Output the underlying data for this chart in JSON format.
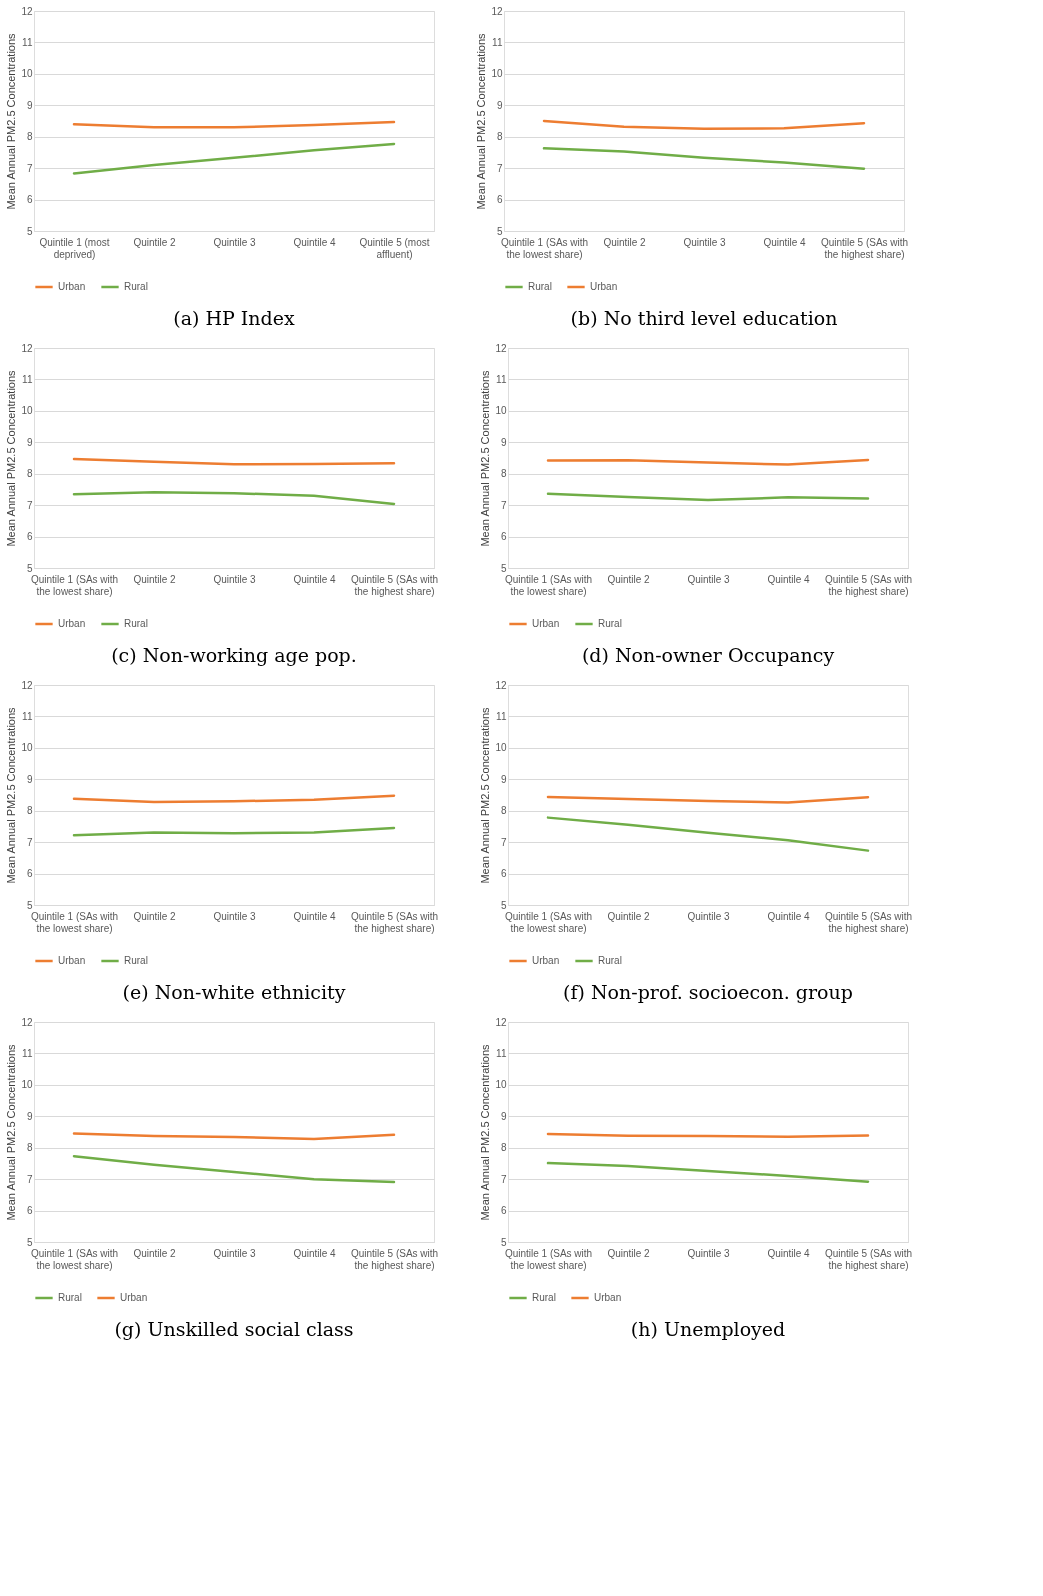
{
  "chart_data": [
    {
      "type": "line",
      "title": "(a) HP Index",
      "ylabel": "Mean Annual PM2.5 Concentrations",
      "categories": [
        "Quintile 1 (most deprived)",
        "Quintile 2",
        "Quintile 3",
        "Quintile 4",
        "Quintile 5 (most affluent)"
      ],
      "ylim": [
        5,
        12
      ],
      "yticks": [
        5,
        6,
        7,
        8,
        9,
        10,
        11,
        12
      ],
      "grid": "y",
      "legend": "bottom",
      "series": [
        {
          "name": "Urban",
          "color": "#ed7d31",
          "values": [
            8.4,
            8.3,
            8.3,
            8.37,
            8.47
          ]
        },
        {
          "name": "Rural",
          "color": "#70ad47",
          "values": [
            6.83,
            7.1,
            7.33,
            7.57,
            7.77
          ]
        }
      ]
    },
    {
      "type": "line",
      "title": "(b) No third level education",
      "ylabel": "Mean Annual PM2.5 Concentrations",
      "categories": [
        "Quintile 1 (SAs with the lowest share)",
        "Quintile 2",
        "Quintile 3",
        "Quintile 4",
        "Quintile 5 (SAs with the highest share)"
      ],
      "ylim": [
        5,
        12
      ],
      "yticks": [
        5,
        6,
        7,
        8,
        9,
        10,
        11,
        12
      ],
      "grid": "y",
      "legend": "bottom",
      "series": [
        {
          "name": "Rural",
          "color": "#70ad47",
          "values": [
            7.63,
            7.53,
            7.33,
            7.18,
            6.98
          ]
        },
        {
          "name": "Urban",
          "color": "#ed7d31",
          "values": [
            8.5,
            8.32,
            8.25,
            8.27,
            8.43
          ]
        }
      ]
    },
    {
      "type": "line",
      "title": "(c) Non-working age pop.",
      "ylabel": "Mean Annual PM2.5 Concentrations",
      "categories": [
        "Quintile 1 (SAs with the lowest share)",
        "Quintile 2",
        "Quintile 3",
        "Quintile 4",
        "Quintile 5 (SAs with the highest share)"
      ],
      "ylim": [
        5,
        12
      ],
      "yticks": [
        5,
        6,
        7,
        8,
        9,
        10,
        11,
        12
      ],
      "grid": "y",
      "legend": "bottom",
      "series": [
        {
          "name": "Urban",
          "color": "#ed7d31",
          "values": [
            8.47,
            8.38,
            8.3,
            8.31,
            8.33
          ]
        },
        {
          "name": "Rural",
          "color": "#70ad47",
          "values": [
            7.35,
            7.41,
            7.38,
            7.3,
            7.04
          ]
        }
      ]
    },
    {
      "type": "line",
      "title": "(d) Non-owner Occupancy",
      "ylabel": "Mean Annual PM2.5 Concentrations",
      "categories": [
        "Quintile 1 (SAs with the lowest share)",
        "Quintile 2",
        "Quintile 3",
        "Quintile 4",
        "Quintile 5 (SAs with the highest share)"
      ],
      "ylim": [
        5,
        12
      ],
      "yticks": [
        5,
        6,
        7,
        8,
        9,
        10,
        11,
        12
      ],
      "grid": "y",
      "legend": "bottom",
      "series": [
        {
          "name": "Urban",
          "color": "#ed7d31",
          "values": [
            8.42,
            8.43,
            8.36,
            8.29,
            8.44
          ]
        },
        {
          "name": "Rural",
          "color": "#70ad47",
          "values": [
            7.36,
            7.26,
            7.16,
            7.25,
            7.21
          ]
        }
      ]
    },
    {
      "type": "line",
      "title": "(e) Non-white ethnicity",
      "ylabel": "Mean Annual PM2.5 Concentrations",
      "categories": [
        "Quintile 1 (SAs with the lowest share)",
        "Quintile 2",
        "Quintile 3",
        "Quintile 4",
        "Quintile 5 (SAs with the highest share)"
      ],
      "ylim": [
        5,
        12
      ],
      "yticks": [
        5,
        6,
        7,
        8,
        9,
        10,
        11,
        12
      ],
      "grid": "y",
      "legend": "bottom",
      "series": [
        {
          "name": "Urban",
          "color": "#ed7d31",
          "values": [
            8.38,
            8.28,
            8.3,
            8.35,
            8.48
          ]
        },
        {
          "name": "Rural",
          "color": "#70ad47",
          "values": [
            7.22,
            7.31,
            7.28,
            7.31,
            7.45
          ]
        }
      ]
    },
    {
      "type": "line",
      "title": "(f) Non-prof. socioecon. group",
      "ylabel": "Mean Annual PM2.5 Concentrations",
      "categories": [
        "Quintile 1 (SAs with the lowest share)",
        "Quintile 2",
        "Quintile 3",
        "Quintile 4",
        "Quintile 5 (SAs with the highest share)"
      ],
      "ylim": [
        5,
        12
      ],
      "yticks": [
        5,
        6,
        7,
        8,
        9,
        10,
        11,
        12
      ],
      "grid": "y",
      "legend": "bottom",
      "series": [
        {
          "name": "Urban",
          "color": "#ed7d31",
          "values": [
            8.44,
            8.37,
            8.31,
            8.26,
            8.43
          ]
        },
        {
          "name": "Rural",
          "color": "#70ad47",
          "values": [
            7.78,
            7.55,
            7.3,
            7.06,
            6.73
          ]
        }
      ]
    },
    {
      "type": "line",
      "title": "(g) Unskilled social class",
      "ylabel": "Mean Annual PM2.5 Concentrations",
      "categories": [
        "Quintile 1 (SAs with the lowest share)",
        "Quintile 2",
        "Quintile 3",
        "Quintile 4",
        "Quintile 5 (SAs with the highest share)"
      ],
      "ylim": [
        5,
        12
      ],
      "yticks": [
        5,
        6,
        7,
        8,
        9,
        10,
        11,
        12
      ],
      "grid": "y",
      "legend": "bottom",
      "series": [
        {
          "name": "Rural",
          "color": "#70ad47",
          "values": [
            7.73,
            7.46,
            7.23,
            7.0,
            6.91
          ]
        },
        {
          "name": "Urban",
          "color": "#ed7d31",
          "values": [
            8.45,
            8.37,
            8.34,
            8.28,
            8.41
          ]
        }
      ]
    },
    {
      "type": "line",
      "title": "(h) Unemployed",
      "ylabel": "Mean Annual PM2.5 Concentrations",
      "categories": [
        "Quintile 1 (SAs with the lowest share)",
        "Quintile 2",
        "Quintile 3",
        "Quintile 4",
        "Quintile 5 (SAs with the highest share)"
      ],
      "ylim": [
        5,
        12
      ],
      "yticks": [
        5,
        6,
        7,
        8,
        9,
        10,
        11,
        12
      ],
      "grid": "y",
      "legend": "bottom",
      "series": [
        {
          "name": "Rural",
          "color": "#70ad47",
          "values": [
            7.51,
            7.42,
            7.26,
            7.1,
            6.92
          ]
        },
        {
          "name": "Urban",
          "color": "#ed7d31",
          "values": [
            8.44,
            8.38,
            8.37,
            8.35,
            8.39
          ]
        }
      ]
    }
  ]
}
